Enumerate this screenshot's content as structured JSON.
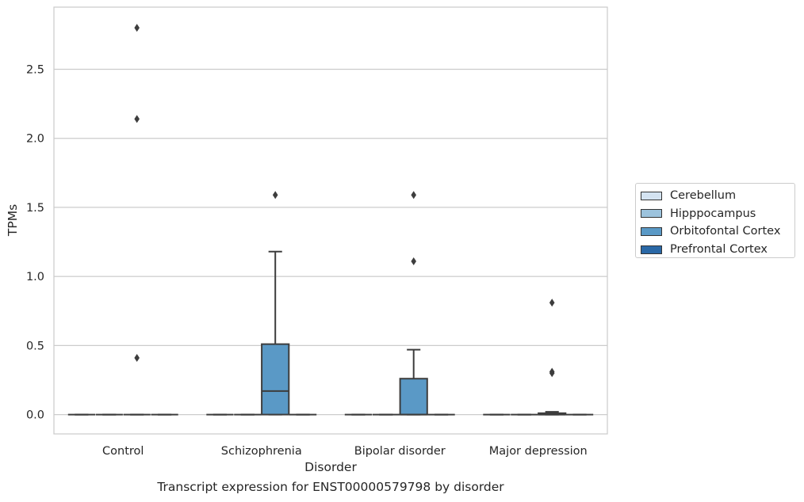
{
  "caption": "Transcript expression for ENST00000579798 by disorder",
  "chart_data": {
    "type": "box",
    "xlabel": "Disorder",
    "ylabel": "TPMs",
    "categories": [
      "Control",
      "Schizophrenia",
      "Bipolar disorder",
      "Major depression"
    ],
    "ylim": [
      -0.14,
      2.95
    ],
    "yticks": [
      "0.0",
      "0.5",
      "1.0",
      "1.5",
      "2.0",
      "2.5"
    ],
    "grid": "horizontal",
    "legend_position": "right",
    "series": [
      {
        "name": "Cerebellum",
        "color": "#d4e3f1",
        "boxes": [
          {
            "category": "Control",
            "q1": 0,
            "median": 0,
            "q3": 0,
            "whislo": 0,
            "whishi": 0,
            "fliers": []
          },
          {
            "category": "Schizophrenia",
            "q1": 0,
            "median": 0,
            "q3": 0,
            "whislo": 0,
            "whishi": 0,
            "fliers": []
          },
          {
            "category": "Bipolar disorder",
            "q1": 0,
            "median": 0,
            "q3": 0,
            "whislo": 0,
            "whishi": 0,
            "fliers": []
          },
          {
            "category": "Major depression",
            "q1": 0,
            "median": 0,
            "q3": 0,
            "whislo": 0,
            "whishi": 0,
            "fliers": []
          }
        ]
      },
      {
        "name": "Hipppocampus",
        "color": "#9cc3dd",
        "boxes": [
          {
            "category": "Control",
            "q1": 0,
            "median": 0,
            "q3": 0,
            "whislo": 0,
            "whishi": 0,
            "fliers": []
          },
          {
            "category": "Schizophrenia",
            "q1": 0,
            "median": 0,
            "q3": 0,
            "whislo": 0,
            "whishi": 0,
            "fliers": []
          },
          {
            "category": "Bipolar disorder",
            "q1": 0,
            "median": 0,
            "q3": 0,
            "whislo": 0,
            "whishi": 0,
            "fliers": []
          },
          {
            "category": "Major depression",
            "q1": 0,
            "median": 0,
            "q3": 0,
            "whislo": 0,
            "whishi": 0,
            "fliers": []
          }
        ]
      },
      {
        "name": "Orbitofontal Cortex",
        "color": "#5a99c6",
        "boxes": [
          {
            "category": "Control",
            "q1": 0,
            "median": 0,
            "q3": 0,
            "whislo": 0,
            "whishi": 0,
            "fliers": [
              0.41,
              2.14,
              2.8
            ]
          },
          {
            "category": "Schizophrenia",
            "q1": 0,
            "median": 0.17,
            "q3": 0.51,
            "whislo": 0,
            "whishi": 1.18,
            "fliers": [
              1.59
            ]
          },
          {
            "category": "Bipolar disorder",
            "q1": 0,
            "median": 0,
            "q3": 0.26,
            "whislo": 0,
            "whishi": 0.47,
            "fliers": [
              1.11,
              1.59
            ]
          },
          {
            "category": "Major depression",
            "q1": 0,
            "median": 0,
            "q3": 0.01,
            "whislo": 0,
            "whishi": 0.02,
            "fliers": [
              0.3,
              0.31,
              0.81
            ]
          }
        ]
      },
      {
        "name": "Prefrontal Cortex",
        "color": "#2a68a6",
        "boxes": [
          {
            "category": "Control",
            "q1": 0,
            "median": 0,
            "q3": 0,
            "whislo": 0,
            "whishi": 0,
            "fliers": []
          },
          {
            "category": "Schizophrenia",
            "q1": 0,
            "median": 0,
            "q3": 0,
            "whislo": 0,
            "whishi": 0,
            "fliers": []
          },
          {
            "category": "Bipolar disorder",
            "q1": 0,
            "median": 0,
            "q3": 0,
            "whislo": 0,
            "whishi": 0,
            "fliers": []
          },
          {
            "category": "Major depression",
            "q1": 0,
            "median": 0,
            "q3": 0,
            "whislo": 0,
            "whishi": 0,
            "fliers": []
          }
        ]
      }
    ]
  }
}
